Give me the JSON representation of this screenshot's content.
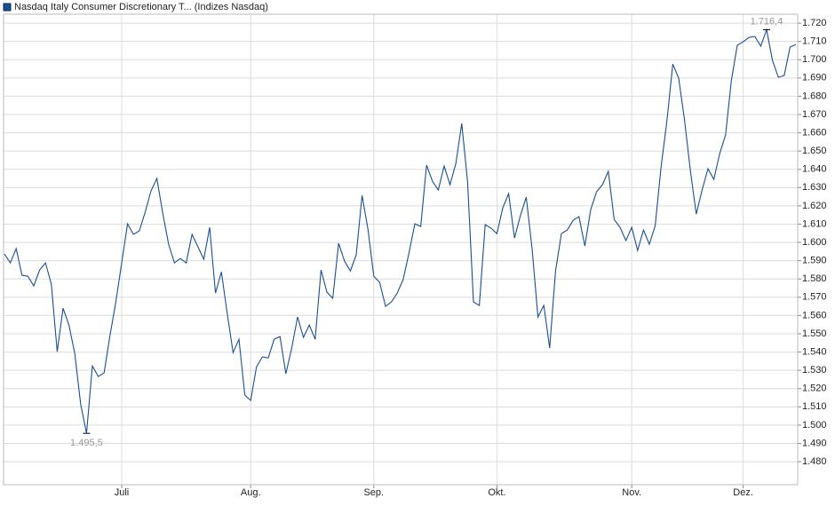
{
  "chart_data": {
    "type": "line",
    "series": [
      {
        "name": "Nasdaq Italy Consumer Discretionary T... (Indizes Nasdaq)",
        "color": "#1a4f8f",
        "values": [
          1593.7,
          1588.8,
          1596.6,
          1582.0,
          1581.5,
          1576.2,
          1584.9,
          1588.8,
          1577.1,
          1540.2,
          1564.0,
          1554.8,
          1539.2,
          1511.5,
          1495.5,
          1532.4,
          1526.6,
          1528.6,
          1549.0,
          1567.4,
          1588.8,
          1610.2,
          1604.4,
          1606.3,
          1616.5,
          1628.2,
          1635.0,
          1616.0,
          1599.0,
          1588.8,
          1591.2,
          1588.8,
          1604.4,
          1597.6,
          1590.8,
          1608.2,
          1572.3,
          1583.9,
          1561.1,
          1539.7,
          1547.0,
          1516.4,
          1513.5,
          1532.0,
          1537.3,
          1536.8,
          1547.0,
          1548.5,
          1528.1,
          1542.2,
          1559.2,
          1548.0,
          1554.8,
          1547.0,
          1584.9,
          1572.8,
          1569.4,
          1599.5,
          1589.8,
          1584.4,
          1593.2,
          1625.7,
          1607.3,
          1581.5,
          1578.1,
          1565.0,
          1567.4,
          1572.3,
          1579.6,
          1594.2,
          1610.2,
          1608.7,
          1642.3,
          1633.5,
          1628.7,
          1641.8,
          1631.6,
          1643.2,
          1665.1,
          1633.0,
          1567.4,
          1565.5,
          1609.7,
          1607.8,
          1604.8,
          1618.9,
          1626.7,
          1602.4,
          1614.6,
          1624.8,
          1596.6,
          1559.2,
          1565.5,
          1542.2,
          1584.4,
          1604.8,
          1606.8,
          1612.1,
          1614.1,
          1598.0,
          1618.0,
          1627.7,
          1631.6,
          1638.9,
          1612.6,
          1608.2,
          1601.0,
          1608.2,
          1595.6,
          1606.8,
          1599.0,
          1609.2,
          1641.3,
          1666.6,
          1697.6,
          1689.9,
          1667.0,
          1639.3,
          1615.5,
          1628.7,
          1640.3,
          1634.5,
          1648.6,
          1658.8,
          1688.9,
          1707.9,
          1709.8,
          1712.2,
          1712.7,
          1707.4,
          1716.4,
          1699.6,
          1690.4,
          1691.3,
          1706.9,
          1708.3
        ]
      }
    ],
    "high_label": "1.716,4",
    "low_label": "1.495,5",
    "xlim": [
      0,
      135
    ],
    "xticks": [
      {
        "value": 20,
        "label": "Juli"
      },
      {
        "value": 42,
        "label": "Aug."
      },
      {
        "value": 63,
        "label": "Sep."
      },
      {
        "value": 84,
        "label": "Okt."
      },
      {
        "value": 107,
        "label": "Nov."
      },
      {
        "value": 126,
        "label": "Dez."
      }
    ],
    "ylim": [
      1467.4,
      1724.9
    ],
    "yticks": [
      {
        "value": 1480,
        "label": "1.480"
      },
      {
        "value": 1490,
        "label": "1.490"
      },
      {
        "value": 1500,
        "label": "1.500"
      },
      {
        "value": 1510,
        "label": "1.510"
      },
      {
        "value": 1520,
        "label": "1.520"
      },
      {
        "value": 1530,
        "label": "1.530"
      },
      {
        "value": 1540,
        "label": "1.540"
      },
      {
        "value": 1550,
        "label": "1.550"
      },
      {
        "value": 1560,
        "label": "1.560"
      },
      {
        "value": 1570,
        "label": "1.570"
      },
      {
        "value": 1580,
        "label": "1.580"
      },
      {
        "value": 1590,
        "label": "1.590"
      },
      {
        "value": 1600,
        "label": "1.600"
      },
      {
        "value": 1610,
        "label": "1.610"
      },
      {
        "value": 1620,
        "label": "1.620"
      },
      {
        "value": 1630,
        "label": "1.630"
      },
      {
        "value": 1640,
        "label": "1.640"
      },
      {
        "value": 1650,
        "label": "1.650"
      },
      {
        "value": 1660,
        "label": "1.660"
      },
      {
        "value": 1670,
        "label": "1.670"
      },
      {
        "value": 1680,
        "label": "1.680"
      },
      {
        "value": 1690,
        "label": "1.690"
      },
      {
        "value": 1700,
        "label": "1.700"
      },
      {
        "value": 1710,
        "label": "1.710"
      },
      {
        "value": 1720,
        "label": "1.720"
      }
    ],
    "grid": true
  }
}
